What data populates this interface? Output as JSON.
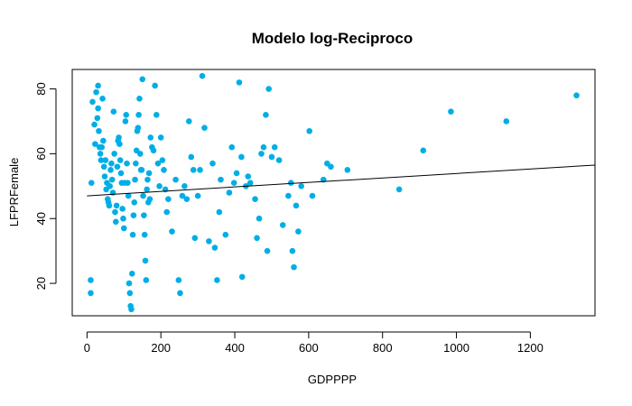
{
  "chart_data": {
    "type": "scatter",
    "title": "Modelo log-Reciproco",
    "xlabel": "GDPPPP",
    "ylabel": "LFPRFemale",
    "xlim": [
      -40,
      1375
    ],
    "ylim": [
      10,
      86
    ],
    "x_ticks": [
      0,
      200,
      400,
      600,
      800,
      1000,
      1200
    ],
    "y_ticks": [
      20,
      40,
      60,
      80
    ],
    "grid": false,
    "point_color": "#00aee6",
    "line_color": "#000000",
    "points": [
      [
        12,
        51
      ],
      [
        10,
        21
      ],
      [
        10,
        17
      ],
      [
        15,
        76
      ],
      [
        20,
        69
      ],
      [
        22,
        63
      ],
      [
        25,
        79
      ],
      [
        28,
        71
      ],
      [
        30,
        81
      ],
      [
        30,
        74
      ],
      [
        32,
        67
      ],
      [
        34,
        62
      ],
      [
        36,
        60
      ],
      [
        38,
        58
      ],
      [
        40,
        62
      ],
      [
        42,
        77
      ],
      [
        44,
        64
      ],
      [
        46,
        56
      ],
      [
        48,
        53
      ],
      [
        50,
        58
      ],
      [
        52,
        49
      ],
      [
        54,
        51
      ],
      [
        56,
        46
      ],
      [
        58,
        45
      ],
      [
        60,
        44
      ],
      [
        62,
        50
      ],
      [
        64,
        55
      ],
      [
        66,
        57
      ],
      [
        68,
        52
      ],
      [
        70,
        48
      ],
      [
        72,
        73
      ],
      [
        74,
        60
      ],
      [
        76,
        42
      ],
      [
        78,
        39
      ],
      [
        80,
        44
      ],
      [
        82,
        56
      ],
      [
        84,
        64
      ],
      [
        86,
        65
      ],
      [
        88,
        63
      ],
      [
        90,
        58
      ],
      [
        92,
        54
      ],
      [
        94,
        51
      ],
      [
        96,
        43
      ],
      [
        98,
        40
      ],
      [
        100,
        37
      ],
      [
        102,
        51
      ],
      [
        104,
        70
      ],
      [
        106,
        72
      ],
      [
        108,
        57
      ],
      [
        110,
        51
      ],
      [
        112,
        47
      ],
      [
        114,
        20
      ],
      [
        116,
        17
      ],
      [
        118,
        13
      ],
      [
        120,
        12
      ],
      [
        122,
        23
      ],
      [
        124,
        35
      ],
      [
        126,
        41
      ],
      [
        128,
        45
      ],
      [
        130,
        52
      ],
      [
        132,
        57
      ],
      [
        134,
        61
      ],
      [
        136,
        67
      ],
      [
        138,
        68
      ],
      [
        140,
        72
      ],
      [
        142,
        77
      ],
      [
        144,
        60
      ],
      [
        146,
        55
      ],
      [
        148,
        55
      ],
      [
        150,
        83
      ],
      [
        152,
        47
      ],
      [
        154,
        41
      ],
      [
        156,
        35
      ],
      [
        158,
        27
      ],
      [
        160,
        21
      ],
      [
        162,
        49
      ],
      [
        164,
        52
      ],
      [
        166,
        45
      ],
      [
        168,
        54
      ],
      [
        170,
        46
      ],
      [
        172,
        65
      ],
      [
        176,
        62
      ],
      [
        180,
        61
      ],
      [
        184,
        81
      ],
      [
        188,
        72
      ],
      [
        192,
        57
      ],
      [
        196,
        50
      ],
      [
        200,
        65
      ],
      [
        204,
        58
      ],
      [
        208,
        55
      ],
      [
        212,
        49
      ],
      [
        216,
        42
      ],
      [
        220,
        46
      ],
      [
        230,
        36
      ],
      [
        240,
        52
      ],
      [
        248,
        21
      ],
      [
        252,
        17
      ],
      [
        258,
        47
      ],
      [
        264,
        50
      ],
      [
        270,
        46
      ],
      [
        276,
        70
      ],
      [
        282,
        59
      ],
      [
        288,
        55
      ],
      [
        292,
        34
      ],
      [
        300,
        47
      ],
      [
        306,
        55
      ],
      [
        312,
        84
      ],
      [
        318,
        68
      ],
      [
        330,
        33
      ],
      [
        340,
        57
      ],
      [
        346,
        31
      ],
      [
        352,
        21
      ],
      [
        358,
        42
      ],
      [
        362,
        52
      ],
      [
        375,
        35
      ],
      [
        385,
        48
      ],
      [
        392,
        62
      ],
      [
        398,
        51
      ],
      [
        405,
        54
      ],
      [
        412,
        82
      ],
      [
        418,
        59
      ],
      [
        420,
        22
      ],
      [
        430,
        50
      ],
      [
        436,
        53
      ],
      [
        442,
        51
      ],
      [
        455,
        46
      ],
      [
        460,
        34
      ],
      [
        466,
        40
      ],
      [
        472,
        60
      ],
      [
        478,
        62
      ],
      [
        484,
        72
      ],
      [
        488,
        30
      ],
      [
        492,
        80
      ],
      [
        500,
        59
      ],
      [
        508,
        62
      ],
      [
        520,
        58
      ],
      [
        530,
        38
      ],
      [
        545,
        47
      ],
      [
        552,
        51
      ],
      [
        556,
        30
      ],
      [
        560,
        25
      ],
      [
        566,
        44
      ],
      [
        572,
        36
      ],
      [
        580,
        50
      ],
      [
        602,
        67
      ],
      [
        610,
        47
      ],
      [
        640,
        52
      ],
      [
        650,
        57
      ],
      [
        660,
        56
      ],
      [
        705,
        55
      ],
      [
        845,
        49
      ],
      [
        910,
        61
      ],
      [
        985,
        73
      ],
      [
        1135,
        70
      ],
      [
        1325,
        78
      ]
    ],
    "fit_line": [
      [
        0,
        47.0
      ],
      [
        1375,
        56.5
      ]
    ]
  }
}
